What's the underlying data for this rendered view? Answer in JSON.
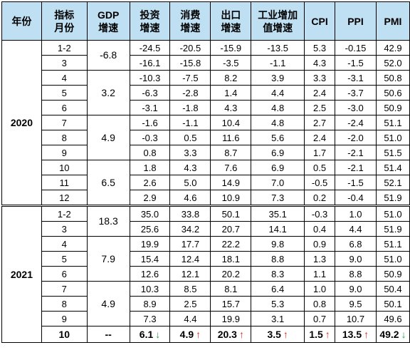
{
  "headers": [
    "年份",
    "指标\n月份",
    "GDP\n增速",
    "投资\n增速",
    "消费\n增速",
    "出口\n增速",
    "工业增加\n值增速",
    "CPI",
    "PPI",
    "PMI"
  ],
  "years": [
    {
      "year": "2020",
      "rows": [
        {
          "month": "1-2",
          "gdp": "-6.8",
          "gdp_span": 2,
          "values": [
            "-24.5",
            "-20.5",
            "-15.9",
            "-13.5",
            "5.3",
            "-0.15",
            "42.9"
          ]
        },
        {
          "month": "3",
          "values": [
            "-16.1",
            "-15.8",
            "-3.5",
            "-1.1",
            "4.3",
            "-1.5",
            "52.0"
          ]
        },
        {
          "month": "4",
          "gdp": "3.2",
          "gdp_span": 3,
          "values": [
            "-10.3",
            "-7.5",
            "8.2",
            "3.9",
            "3.3",
            "-3.1",
            "50.8"
          ]
        },
        {
          "month": "5",
          "values": [
            "-6.3",
            "-2.8",
            "1.4",
            "4.4",
            "2.4",
            "-3.7",
            "50.6"
          ]
        },
        {
          "month": "6",
          "values": [
            "-3.1",
            "-1.8",
            "4.3",
            "4.8",
            "2.5",
            "-3.0",
            "50.9"
          ]
        },
        {
          "month": "7",
          "gdp": "4.9",
          "gdp_span": 3,
          "values": [
            "-1.6",
            "-1.1",
            "10.4",
            "4.8",
            "2.7",
            "-2.4",
            "51.1"
          ]
        },
        {
          "month": "8",
          "values": [
            "-0.3",
            "0.5",
            "11.6",
            "5.6",
            "2.4",
            "-2.0",
            "51.0"
          ]
        },
        {
          "month": "9",
          "values": [
            "0.8",
            "3.3",
            "8.7",
            "6.9",
            "1.7",
            "-2.1",
            "51.5"
          ]
        },
        {
          "month": "10",
          "gdp": "6.5",
          "gdp_span": 3,
          "values": [
            "1.8",
            "4.3",
            "7.6",
            "6.9",
            "0.5",
            "-2.1",
            "51.4"
          ]
        },
        {
          "month": "11",
          "values": [
            "2.6",
            "5.0",
            "14.9",
            "7.0",
            "-0.5",
            "-1.5",
            "52.1"
          ]
        },
        {
          "month": "12",
          "values": [
            "2.9",
            "4.6",
            "10.9",
            "7.3",
            "0.2",
            "-0.4",
            "51.9"
          ]
        }
      ]
    },
    {
      "year": "2021",
      "rows": [
        {
          "month": "1-2",
          "gdp": "18.3",
          "gdp_span": 2,
          "values": [
            "35.0",
            "33.8",
            "50.1",
            "35.1",
            "-0.3",
            "1.0",
            "51.0"
          ]
        },
        {
          "month": "3",
          "values": [
            "25.6",
            "34.2",
            "20.7",
            "14.1",
            "0.4",
            "4.4",
            "51.9"
          ]
        },
        {
          "month": "4",
          "gdp": "7.9",
          "gdp_span": 3,
          "values": [
            "19.9",
            "17.7",
            "22.2",
            "9.8",
            "0.9",
            "6.8",
            "51.1"
          ]
        },
        {
          "month": "5",
          "values": [
            "15.4",
            "12.4",
            "18.1",
            "8.8",
            "1.3",
            "9.0",
            "51.0"
          ]
        },
        {
          "month": "6",
          "values": [
            "12.6",
            "12.1",
            "20.2",
            "8.3",
            "1.1",
            "8.8",
            "50.9"
          ]
        },
        {
          "month": "7",
          "gdp": "4.9",
          "gdp_span": 3,
          "values": [
            "10.3",
            "8.5",
            "8.1",
            "6.4",
            "1.0",
            "9.0",
            "50.4"
          ]
        },
        {
          "month": "8",
          "values": [
            "8.9",
            "2.5",
            "15.7",
            "5.3",
            "0.8",
            "9.5",
            "50.1"
          ]
        },
        {
          "month": "9",
          "values": [
            "7.3",
            "4.4",
            "19.9",
            "3.1",
            "0.7",
            "10.7",
            "49.6"
          ]
        },
        {
          "month": "10",
          "gdp": "--",
          "gdp_span": 1,
          "last": true,
          "values": [
            "6.1",
            "4.9",
            "20.3",
            "3.5",
            "1.5",
            "13.5",
            "49.2"
          ],
          "arrows": [
            "down",
            "up",
            "up",
            "up",
            "up",
            "up",
            "down"
          ]
        }
      ]
    }
  ],
  "arrow_glyphs": {
    "up": "↑",
    "down": "↓"
  },
  "colors": {
    "header_bg": "#bfe0f2",
    "arrow_up": "#e0231c",
    "arrow_down": "#2aa04a"
  }
}
